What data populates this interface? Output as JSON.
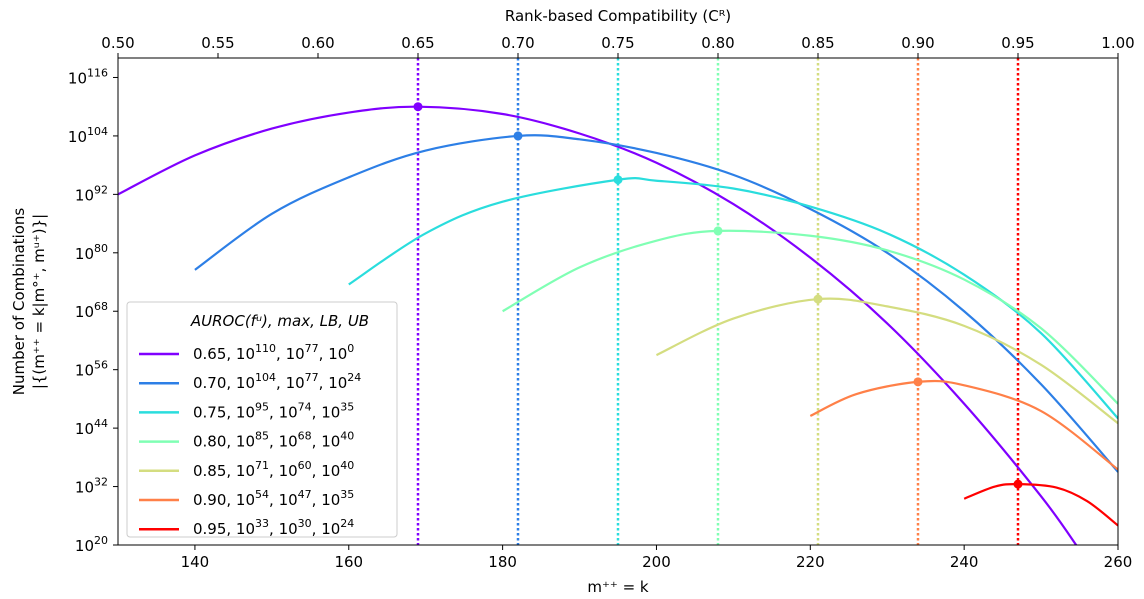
{
  "chart_data": {
    "type": "line",
    "ylabel_line1": "Number of Combinations",
    "ylabel_line2": "|{(m⁺⁺ = k|m°⁺, mᵘ⁺)}|",
    "xlabel": "m⁺⁺ = k",
    "top_xlabel": "Rank-based Compatibility (Cᴿ)",
    "xlim": [
      130,
      260
    ],
    "ylim_log10": [
      20,
      120
    ],
    "top_xlim": [
      0.5,
      1.0
    ],
    "x_ticks": [
      "140",
      "160",
      "180",
      "200",
      "220",
      "240",
      "260"
    ],
    "x_tick_values": [
      140,
      160,
      180,
      200,
      220,
      240,
      260
    ],
    "top_ticks": [
      "0.50",
      "0.55",
      "0.60",
      "0.65",
      "0.70",
      "0.75",
      "0.80",
      "0.85",
      "0.90",
      "0.95",
      "1.00"
    ],
    "top_tick_values": [
      0.5,
      0.55,
      0.6,
      0.65,
      0.7,
      0.75,
      0.8,
      0.85,
      0.9,
      0.95,
      1.0
    ],
    "y_tick_exponents": [
      20,
      32,
      44,
      56,
      68,
      80,
      92,
      104,
      116
    ],
    "y_tick_exponent_labels": [
      "20",
      "32",
      "44",
      "56",
      "68",
      "80",
      "92",
      "104",
      "116"
    ],
    "y_tick_base": "10",
    "legend": {
      "title": "AUROC(fᵘ), max, LB, UB",
      "placement": "lower-left"
    },
    "series": [
      {
        "name": "0.65",
        "color": "#8000ff",
        "auroc": "0.65",
        "max_exp": "110",
        "lb_exp": "77",
        "ub_exp": "0",
        "peak": [
          169,
          110
        ],
        "vline_x": 169,
        "x": [
          130,
          140,
          150,
          160,
          169,
          180,
          190,
          200,
          210,
          220,
          230,
          240,
          250,
          255
        ],
        "y": [
          92,
          100,
          105.5,
          108.8,
          110,
          108.5,
          104.5,
          98.5,
          90,
          79,
          65.5,
          49,
          30,
          19
        ]
      },
      {
        "name": "0.70",
        "color": "#2d7fe6",
        "auroc": "0.70",
        "max_exp": "104",
        "lb_exp": "77",
        "ub_exp": "24",
        "peak": [
          182,
          104
        ],
        "vline_x": 182,
        "x": [
          140,
          150,
          160,
          170,
          182,
          190,
          200,
          210,
          220,
          230,
          240,
          250,
          260
        ],
        "y": [
          76.5,
          88,
          95.5,
          101,
          104,
          103.3,
          100.5,
          96,
          89,
          80,
          68,
          53,
          35
        ]
      },
      {
        "name": "0.75",
        "color": "#2adddd",
        "auroc": "0.75",
        "max_exp": "95",
        "lb_exp": "74",
        "ub_exp": "35",
        "peak": [
          195,
          95
        ],
        "vline_x": 195,
        "x": [
          160,
          170,
          180,
          195,
          200,
          210,
          220,
          230,
          240,
          250,
          260
        ],
        "y": [
          73.5,
          84,
          90.5,
          95,
          94.8,
          93.2,
          89.5,
          84,
          75.5,
          63.5,
          46
        ]
      },
      {
        "name": "0.80",
        "color": "#80ffb4",
        "auroc": "0.80",
        "max_exp": "85",
        "lb_exp": "68",
        "ub_exp": "40",
        "peak": [
          208,
          84.5
        ],
        "vline_x": 208,
        "x": [
          180,
          190,
          200,
          208,
          220,
          230,
          240,
          250,
          260
        ],
        "y": [
          68,
          77,
          82.5,
          84.5,
          83.5,
          80.5,
          74.5,
          64.5,
          49
        ]
      },
      {
        "name": "0.85",
        "color": "#d4dd80",
        "auroc": "0.85",
        "max_exp": "71",
        "lb_exp": "60",
        "ub_exp": "40",
        "peak": [
          221,
          70.5
        ],
        "vline_x": 221,
        "x": [
          200,
          210,
          221,
          230,
          240,
          250,
          260
        ],
        "y": [
          59,
          66.5,
          70.5,
          69,
          65,
          57,
          45
        ]
      },
      {
        "name": "0.90",
        "color": "#ff8048",
        "auroc": "0.90",
        "max_exp": "54",
        "lb_exp": "47",
        "ub_exp": "35",
        "peak": [
          234,
          53.5
        ],
        "vline_x": 234,
        "x": [
          220,
          226,
          234,
          240,
          250,
          260
        ],
        "y": [
          46.5,
          51,
          53.5,
          52.8,
          47.5,
          35.5
        ]
      },
      {
        "name": "0.95",
        "color": "#ff0000",
        "auroc": "0.95",
        "max_exp": "33",
        "lb_exp": "30",
        "ub_exp": "24",
        "peak": [
          247,
          32.5
        ],
        "vline_x": 247,
        "x": [
          240,
          244,
          247,
          252,
          256,
          260
        ],
        "y": [
          29.5,
          32,
          32.5,
          31.8,
          29,
          24
        ]
      }
    ]
  }
}
